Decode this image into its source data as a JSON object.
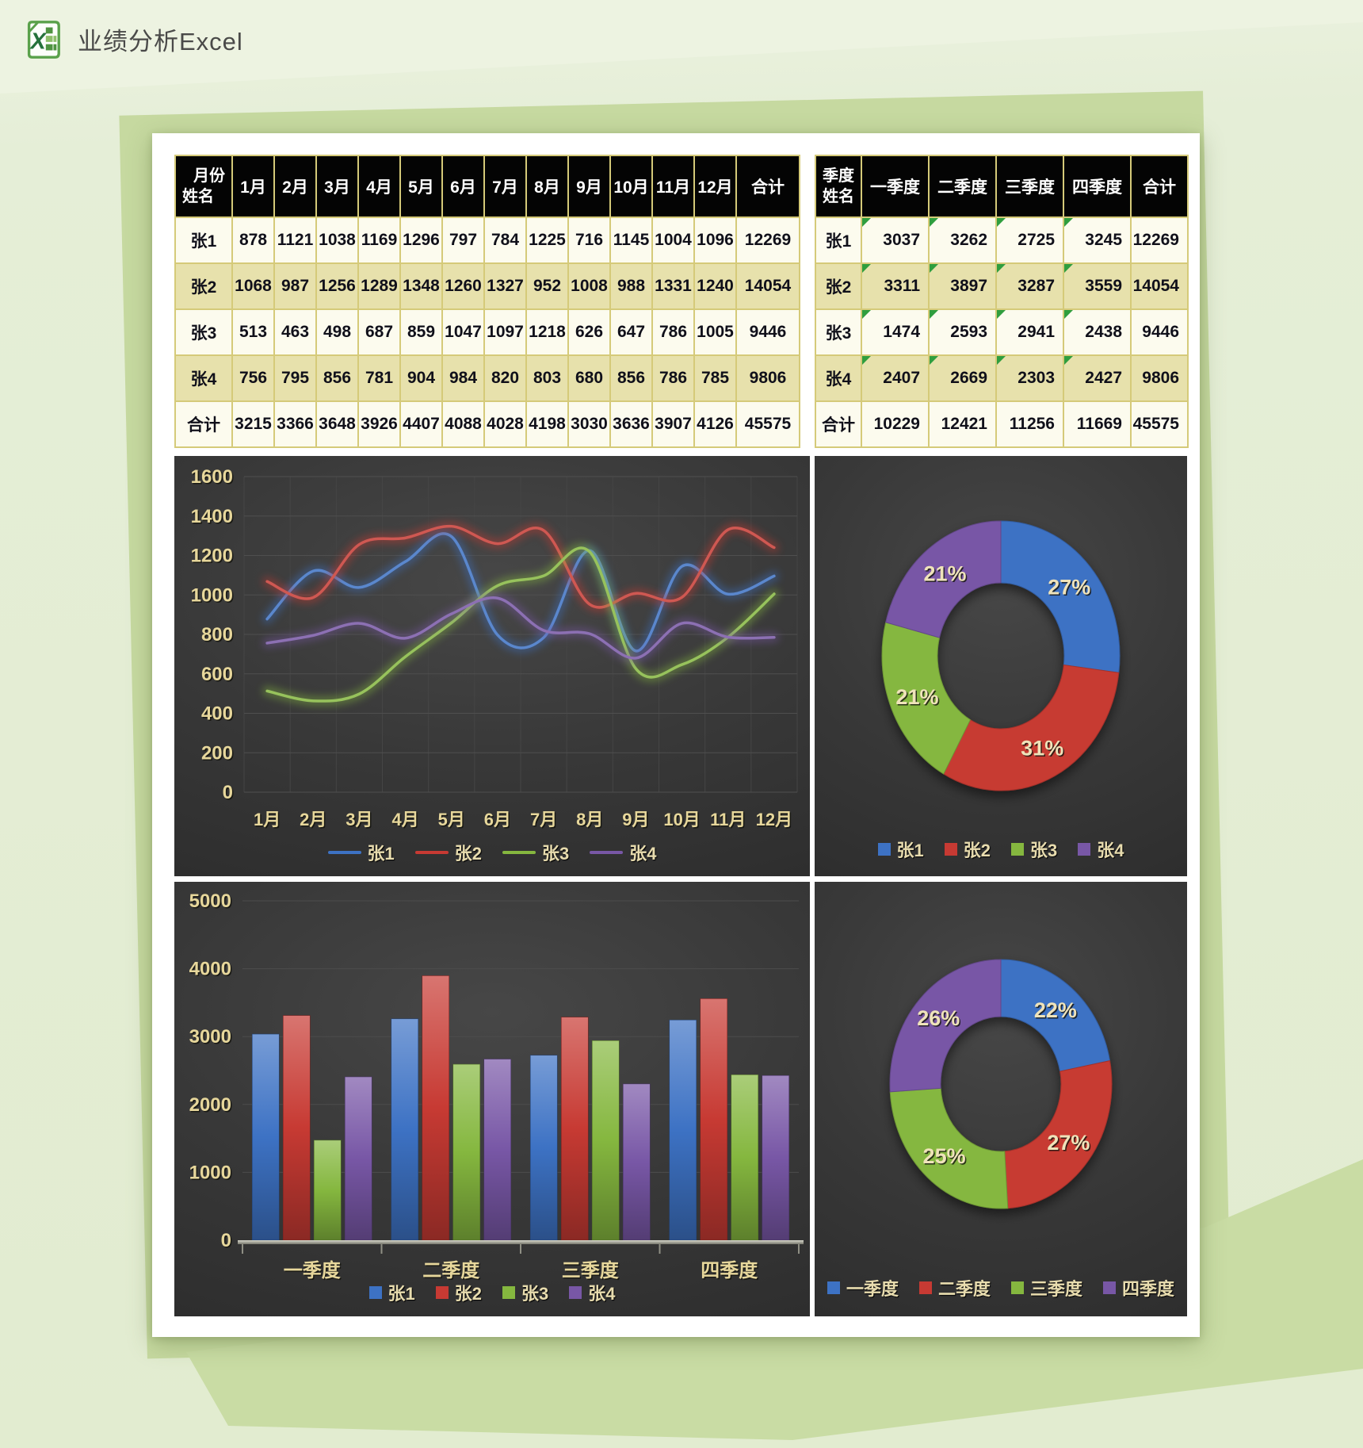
{
  "page": {
    "title_bar": {
      "title": "业绩分析Excel",
      "icon": "excel-icon"
    }
  },
  "colors": {
    "series": [
      "#3d72c4",
      "#c73a33",
      "#85b73f",
      "#7857a6"
    ],
    "panel_background": "#333333",
    "axis_label": "#e7d79b",
    "percent_label": "#efe3ba",
    "legend_label": "#e8dcae",
    "table_border": "#d5ca79",
    "table_header_bg": "#040404",
    "table_row_light": "#fcfbee",
    "table_row_khaki": "#e7e1ac",
    "paper": "#ffffff",
    "background_light": "#e4eed6",
    "background_dark": "#c9dca4"
  },
  "monthly_table": {
    "corner_top": "月份",
    "corner_bottom": "姓名",
    "columns": [
      "1月",
      "2月",
      "3月",
      "4月",
      "5月",
      "6月",
      "7月",
      "8月",
      "9月",
      "10月",
      "11月",
      "12月",
      "合计"
    ],
    "rows": [
      {
        "name": "张1",
        "values": [
          878,
          1121,
          1038,
          1169,
          1296,
          797,
          784,
          1225,
          716,
          1145,
          1004,
          1096,
          12269
        ]
      },
      {
        "name": "张2",
        "values": [
          1068,
          987,
          1256,
          1289,
          1348,
          1260,
          1327,
          952,
          1008,
          988,
          1331,
          1240,
          14054
        ]
      },
      {
        "name": "张3",
        "values": [
          513,
          463,
          498,
          687,
          859,
          1047,
          1097,
          1218,
          626,
          647,
          786,
          1005,
          9446
        ]
      },
      {
        "name": "张4",
        "values": [
          756,
          795,
          856,
          781,
          904,
          984,
          820,
          803,
          680,
          856,
          786,
          785,
          9806
        ]
      },
      {
        "name": "合计",
        "values": [
          3215,
          3366,
          3648,
          3926,
          4407,
          4088,
          4028,
          4198,
          3030,
          3636,
          3907,
          4126,
          45575
        ]
      }
    ]
  },
  "quarterly_table": {
    "corner_top": "季度",
    "corner_bottom": "姓名",
    "columns": [
      "一季度",
      "二季度",
      "三季度",
      "四季度",
      "合计"
    ],
    "rows": [
      {
        "name": "张1",
        "values": [
          3037,
          3262,
          2725,
          3245,
          12269
        ]
      },
      {
        "name": "张2",
        "values": [
          3311,
          3897,
          3287,
          3559,
          14054
        ]
      },
      {
        "name": "张3",
        "values": [
          1474,
          2593,
          2941,
          2438,
          9446
        ]
      },
      {
        "name": "张4",
        "values": [
          2407,
          2669,
          2303,
          2427,
          9806
        ]
      },
      {
        "name": "合计",
        "values": [
          10229,
          12421,
          11256,
          11669,
          45575
        ]
      }
    ]
  },
  "chart_data": [
    {
      "id": "monthly-line",
      "type": "line",
      "title": "",
      "x": [
        "1月",
        "2月",
        "3月",
        "4月",
        "5月",
        "6月",
        "7月",
        "8月",
        "9月",
        "10月",
        "11月",
        "12月"
      ],
      "series": [
        {
          "name": "张1",
          "values": [
            878,
            1121,
            1038,
            1169,
            1296,
            797,
            784,
            1225,
            716,
            1145,
            1004,
            1096
          ]
        },
        {
          "name": "张2",
          "values": [
            1068,
            987,
            1256,
            1289,
            1348,
            1260,
            1327,
            952,
            1008,
            988,
            1331,
            1240
          ]
        },
        {
          "name": "张3",
          "values": [
            513,
            463,
            498,
            687,
            859,
            1047,
            1097,
            1218,
            626,
            647,
            786,
            1005
          ]
        },
        {
          "name": "张4",
          "values": [
            756,
            795,
            856,
            781,
            904,
            984,
            820,
            803,
            680,
            856,
            786,
            785
          ]
        }
      ],
      "ylim": [
        0,
        1600
      ],
      "ytick": 200,
      "grid": true,
      "legend_position": "bottom"
    },
    {
      "id": "year-share-donut",
      "type": "pie",
      "title": "",
      "labels": [
        "张1",
        "张2",
        "张3",
        "张4"
      ],
      "values": [
        12269,
        14054,
        9446,
        9806
      ],
      "percent_labels": [
        "27%",
        "31%",
        "21%",
        "21%"
      ],
      "legend_position": "bottom"
    },
    {
      "id": "quarterly-bar",
      "type": "bar",
      "title": "",
      "categories": [
        "一季度",
        "二季度",
        "三季度",
        "四季度"
      ],
      "series": [
        {
          "name": "张1",
          "values": [
            3037,
            3262,
            2725,
            3245
          ]
        },
        {
          "name": "张2",
          "values": [
            3311,
            3897,
            3287,
            3559
          ]
        },
        {
          "name": "张3",
          "values": [
            1474,
            2593,
            2941,
            2438
          ]
        },
        {
          "name": "张4",
          "values": [
            2407,
            2669,
            2303,
            2427
          ]
        }
      ],
      "ylim": [
        0,
        5000
      ],
      "ytick": 1000,
      "grid": true,
      "legend_position": "bottom"
    },
    {
      "id": "quarter-share-donut",
      "type": "pie",
      "title": "",
      "labels": [
        "一季度",
        "二季度",
        "三季度",
        "四季度"
      ],
      "values": [
        10229,
        12421,
        11256,
        11669
      ],
      "percent_labels": [
        "22%",
        "27%",
        "25%",
        "26%"
      ],
      "legend_position": "bottom"
    }
  ]
}
